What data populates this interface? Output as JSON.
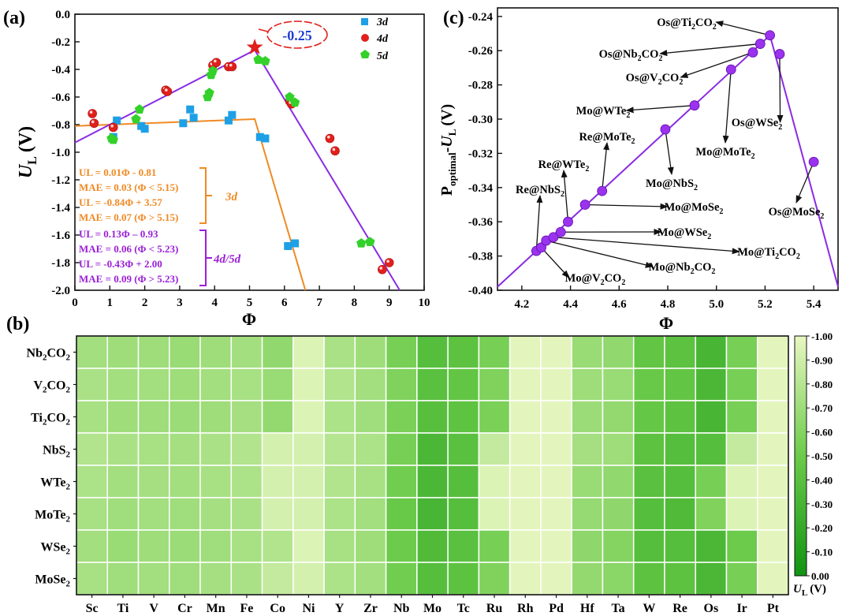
{
  "chart_data": [
    {
      "panel": "(a)",
      "type": "scatter",
      "xlabel": "Φ",
      "ylabel_main": "U",
      "ylabel_sub": "L",
      "ylabel_unit": "(V)",
      "xlim": [
        0,
        10
      ],
      "ylim": [
        -2.0,
        0.0
      ],
      "xticks": [
        0,
        1,
        2,
        3,
        4,
        5,
        6,
        7,
        8,
        9,
        10
      ],
      "yticks": [
        0.0,
        -0.2,
        -0.4,
        -0.6,
        -0.8,
        -1.0,
        -1.2,
        -1.4,
        -1.6,
        -1.8,
        -2.0
      ],
      "legend_position": "top-right",
      "series": [
        {
          "name": "3d",
          "marker": "square",
          "color": "#1ea0e6",
          "points": [
            [
              1.1,
              -0.89
            ],
            [
              1.2,
              -0.77
            ],
            [
              1.9,
              -0.81
            ],
            [
              2.0,
              -0.83
            ],
            [
              3.1,
              -0.79
            ],
            [
              3.3,
              -0.69
            ],
            [
              3.4,
              -0.75
            ],
            [
              4.4,
              -0.77
            ],
            [
              4.5,
              -0.73
            ],
            [
              5.3,
              -0.89
            ],
            [
              5.45,
              -0.9
            ],
            [
              6.1,
              -1.68
            ],
            [
              6.3,
              -1.66
            ]
          ]
        },
        {
          "name": "4d",
          "marker": "circle",
          "color": "#e0201b",
          "points": [
            [
              0.5,
              -0.72
            ],
            [
              0.55,
              -0.79
            ],
            [
              1.1,
              -0.82
            ],
            [
              2.6,
              -0.55
            ],
            [
              2.65,
              -0.56
            ],
            [
              3.95,
              -0.37
            ],
            [
              4.05,
              -0.35
            ],
            [
              4.4,
              -0.38
            ],
            [
              4.5,
              -0.38
            ],
            [
              6.15,
              -0.63
            ],
            [
              6.2,
              -0.65
            ],
            [
              7.3,
              -0.9
            ],
            [
              7.45,
              -0.99
            ],
            [
              8.8,
              -1.85
            ],
            [
              9.0,
              -1.8
            ]
          ]
        },
        {
          "name": "5d",
          "marker": "pentagon",
          "color": "#33d12a",
          "points": [
            [
              1.05,
              -0.9
            ],
            [
              1.1,
              -0.91
            ],
            [
              1.75,
              -0.76
            ],
            [
              1.85,
              -0.69
            ],
            [
              3.8,
              -0.6
            ],
            [
              3.85,
              -0.57
            ],
            [
              3.9,
              -0.44
            ],
            [
              3.95,
              -0.41
            ],
            [
              5.25,
              -0.33
            ],
            [
              5.45,
              -0.34
            ],
            [
              6.15,
              -0.6
            ],
            [
              6.3,
              -0.64
            ],
            [
              8.2,
              -1.66
            ],
            [
              8.45,
              -1.65
            ]
          ]
        }
      ],
      "fit_lines": [
        {
          "color": "#f08a24",
          "points": [
            [
              0,
              -0.81
            ],
            [
              5.15,
              -0.76
            ],
            [
              6.6,
              -2.0
            ]
          ]
        },
        {
          "color": "#8a2be2",
          "points": [
            [
              0,
              -0.93
            ],
            [
              5.15,
              -0.26
            ],
            [
              9.3,
              -2.0
            ]
          ]
        }
      ],
      "star": {
        "x": 5.15,
        "y": -0.24,
        "color": "#e0201b"
      },
      "callout": "-0.25",
      "equations_3d": [
        "UL = 0.01Φ - 0.81",
        "MAE = 0.03 (Φ < 5.15)",
        "UL = -0.84Φ + 3.57",
        "MAE = 0.07 (Φ > 5.15)"
      ],
      "equations_45d": [
        "UL = 0.13Φ – 0.93",
        "MAE = 0.06 (Φ < 5.23)",
        "UL = -0.43Φ + 2.00",
        "MAE = 0.09 (Φ > 5.23)"
      ],
      "bracket_label_3d": "3d",
      "bracket_label_45d": "4d/5d"
    },
    {
      "panel": "(c)",
      "type": "line",
      "xlabel": "Φ",
      "ylabel_main": "P",
      "ylabel_sub1": "optimal",
      "ylabel_dash": "-",
      "ylabel_u": "U",
      "ylabel_sub2": "L",
      "ylabel_unit": "(V)",
      "xlim": [
        4.1,
        5.5
      ],
      "ylim": [
        -0.4,
        -0.235
      ],
      "xticks": [
        4.2,
        4.4,
        4.6,
        4.8,
        5.0,
        5.2,
        5.4
      ],
      "yticks": [
        -0.24,
        -0.26,
        -0.28,
        -0.3,
        -0.32,
        -0.34,
        -0.36,
        -0.38,
        -0.4
      ],
      "color": "#8a2be2",
      "line": [
        [
          4.1,
          -0.398
        ],
        [
          5.22,
          -0.251
        ],
        [
          5.5,
          -0.398
        ]
      ],
      "points": [
        [
          4.26,
          -0.377
        ],
        [
          4.28,
          -0.375
        ],
        [
          4.3,
          -0.371
        ],
        [
          4.33,
          -0.369
        ],
        [
          4.36,
          -0.366
        ],
        [
          4.39,
          -0.36
        ],
        [
          4.46,
          -0.35
        ],
        [
          4.53,
          -0.342
        ],
        [
          4.79,
          -0.306
        ],
        [
          4.91,
          -0.292
        ],
        [
          5.06,
          -0.271
        ],
        [
          5.15,
          -0.261
        ],
        [
          5.18,
          -0.256
        ],
        [
          5.22,
          -0.251
        ],
        [
          5.26,
          -0.262
        ],
        [
          5.4,
          -0.325
        ]
      ],
      "annotations": [
        {
          "lead": "Os@Ti",
          "s1": "2",
          "mid": "CO",
          "s2": "2",
          "tail": "",
          "px": 5.22,
          "py": -0.251,
          "tx": 871,
          "ty": 33
        },
        {
          "lead": "Os@Nb",
          "s1": "2",
          "mid": "CO",
          "s2": "2",
          "tail": "",
          "px": 5.18,
          "py": -0.256,
          "tx": 800,
          "ty": 73
        },
        {
          "lead": "Os@V",
          "s1": "2",
          "mid": "CO",
          "s2": "2",
          "tail": "",
          "px": 5.15,
          "py": -0.261,
          "tx": 830,
          "ty": 103
        },
        {
          "lead": "Mo@WTe",
          "s1": "2",
          "mid": "",
          "s2": "",
          "tail": "",
          "px": 4.91,
          "py": -0.292,
          "tx": 765,
          "ty": 145
        },
        {
          "lead": "Re@MoTe",
          "s1": "2",
          "mid": "",
          "s2": "",
          "tail": "",
          "px": 4.53,
          "py": -0.342,
          "tx": 770,
          "ty": 178
        },
        {
          "lead": "Re@WTe",
          "s1": "2",
          "mid": "",
          "s2": "",
          "tail": "",
          "px": 4.39,
          "py": -0.36,
          "tx": 715,
          "ty": 213
        },
        {
          "lead": "Re@NbS",
          "s1": "2",
          "mid": "",
          "s2": "",
          "tail": "",
          "px": 4.26,
          "py": -0.377,
          "tx": 685,
          "ty": 245
        },
        {
          "lead": "Os@WSe",
          "s1": "2",
          "mid": "",
          "s2": "",
          "tail": "",
          "px": 5.26,
          "py": -0.262,
          "tx": 960,
          "ty": 160
        },
        {
          "lead": "Mo@MoTe",
          "s1": "2",
          "mid": "",
          "s2": "",
          "tail": "",
          "px": 5.06,
          "py": -0.271,
          "tx": 920,
          "ty": 197
        },
        {
          "lead": "Mo@NbS",
          "s1": "2",
          "mid": "",
          "s2": "",
          "tail": "",
          "px": 4.79,
          "py": -0.306,
          "tx": 852,
          "ty": 237
        },
        {
          "lead": "Mo@MoSe",
          "s1": "2",
          "mid": "",
          "s2": "",
          "tail": "",
          "px": 4.46,
          "py": -0.35,
          "tx": 880,
          "ty": 267
        },
        {
          "lead": "Mo@WSe",
          "s1": "2",
          "mid": "",
          "s2": "",
          "tail": "",
          "px": 4.36,
          "py": -0.366,
          "tx": 868,
          "ty": 299
        },
        {
          "lead": "Mo@Ti",
          "s1": "2",
          "mid": "CO",
          "s2": "2",
          "tail": "",
          "px": 4.33,
          "py": -0.369,
          "tx": 975,
          "ty": 324
        },
        {
          "lead": "Mo@Nb",
          "s1": "2",
          "mid": "CO",
          "s2": "2",
          "tail": "",
          "px": 4.3,
          "py": -0.371,
          "tx": 865,
          "ty": 343
        },
        {
          "lead": "Mo@V",
          "s1": "2",
          "mid": "CO",
          "s2": "2",
          "tail": "",
          "px": 4.28,
          "py": -0.375,
          "tx": 755,
          "ty": 357
        },
        {
          "lead": "Os@MoSe",
          "s1": "2",
          "mid": "",
          "s2": "",
          "tail": "",
          "px": 5.4,
          "py": -0.325,
          "tx": 1010,
          "ty": 273
        }
      ]
    },
    {
      "panel": "(b)",
      "type": "heatmap",
      "x_categories": [
        "Sc",
        "Ti",
        "V",
        "Cr",
        "Mn",
        "Fe",
        "Co",
        "Ni",
        "Y",
        "Zr",
        "Nb",
        "Mo",
        "Tc",
        "Ru",
        "Rh",
        "Pd",
        "Hf",
        "Ta",
        "W",
        "Re",
        "Os",
        "Ir",
        "Pt"
      ],
      "y_categories": [
        {
          "base": "Nb",
          "s1": "2",
          "mid": "CO",
          "s2": "2"
        },
        {
          "base": "V",
          "s1": "2",
          "mid": "CO",
          "s2": "2"
        },
        {
          "base": "Ti",
          "s1": "2",
          "mid": "CO",
          "s2": "2"
        },
        {
          "base": "NbS",
          "s1": "2",
          "mid": "",
          "s2": ""
        },
        {
          "base": "WTe",
          "s1": "2",
          "mid": "",
          "s2": ""
        },
        {
          "base": "MoTe",
          "s1": "2",
          "mid": "",
          "s2": ""
        },
        {
          "base": "WSe",
          "s1": "2",
          "mid": "",
          "s2": ""
        },
        {
          "base": "MoSe",
          "s1": "2",
          "mid": "",
          "s2": ""
        }
      ],
      "values": [
        [
          -0.72,
          -0.7,
          -0.7,
          -0.68,
          -0.7,
          -0.72,
          -0.65,
          -0.95,
          -0.75,
          -0.7,
          -0.55,
          -0.38,
          -0.42,
          -0.55,
          -0.98,
          -0.98,
          -0.68,
          -0.65,
          -0.45,
          -0.42,
          -0.3,
          -0.55,
          -0.98
        ],
        [
          -0.75,
          -0.72,
          -0.72,
          -0.7,
          -0.72,
          -0.74,
          -0.68,
          -0.95,
          -0.78,
          -0.72,
          -0.58,
          -0.4,
          -0.45,
          -0.58,
          -0.98,
          -0.98,
          -0.7,
          -0.68,
          -0.48,
          -0.45,
          -0.32,
          -0.55,
          -0.98
        ],
        [
          -0.74,
          -0.7,
          -0.7,
          -0.69,
          -0.7,
          -0.73,
          -0.66,
          -0.95,
          -0.76,
          -0.71,
          -0.56,
          -0.39,
          -0.43,
          -0.56,
          -0.98,
          -0.98,
          -0.69,
          -0.66,
          -0.46,
          -0.42,
          -0.3,
          -0.55,
          -0.98
        ],
        [
          -0.78,
          -0.75,
          -0.74,
          -0.73,
          -0.75,
          -0.78,
          -0.92,
          -0.92,
          -0.8,
          -0.76,
          -0.55,
          -0.32,
          -0.4,
          -0.85,
          -0.98,
          -0.98,
          -0.73,
          -0.7,
          -0.42,
          -0.38,
          -0.38,
          -0.85,
          -0.98
        ],
        [
          -0.76,
          -0.72,
          -0.73,
          -0.72,
          -0.74,
          -0.76,
          -0.92,
          -0.92,
          -0.78,
          -0.74,
          -0.52,
          -0.32,
          -0.38,
          -0.95,
          -0.98,
          -0.98,
          -0.68,
          -0.65,
          -0.4,
          -0.38,
          -0.55,
          -0.95,
          -0.98
        ],
        [
          -0.74,
          -0.71,
          -0.72,
          -0.71,
          -0.73,
          -0.75,
          -0.92,
          -0.92,
          -0.76,
          -0.72,
          -0.48,
          -0.3,
          -0.38,
          -0.95,
          -0.98,
          -0.98,
          -0.67,
          -0.64,
          -0.38,
          -0.35,
          -0.58,
          -0.95,
          -0.98
        ],
        [
          -0.72,
          -0.68,
          -0.7,
          -0.69,
          -0.71,
          -0.74,
          -0.78,
          -0.95,
          -0.74,
          -0.7,
          -0.5,
          -0.35,
          -0.4,
          -0.55,
          -0.98,
          -0.98,
          -0.64,
          -0.6,
          -0.38,
          -0.38,
          -0.32,
          -0.5,
          -0.98
        ],
        [
          -0.74,
          -0.71,
          -0.72,
          -0.71,
          -0.73,
          -0.75,
          -0.85,
          -0.92,
          -0.76,
          -0.72,
          -0.52,
          -0.38,
          -0.42,
          -0.58,
          -0.98,
          -0.98,
          -0.66,
          -0.62,
          -0.42,
          -0.42,
          -0.32,
          -0.55,
          -0.98
        ]
      ],
      "colorbar": {
        "ticks": [
          "-1.00",
          "-0.90",
          "-0.80",
          "-0.70",
          "-0.60",
          "-0.50",
          "-0.40",
          "-0.30",
          "-0.20",
          "-0.10",
          "0.00"
        ],
        "label_main": "U",
        "label_sub": "L",
        "label_unit": "(V)",
        "color_low": "#e8f7c2",
        "color_high": "#129312"
      }
    }
  ]
}
